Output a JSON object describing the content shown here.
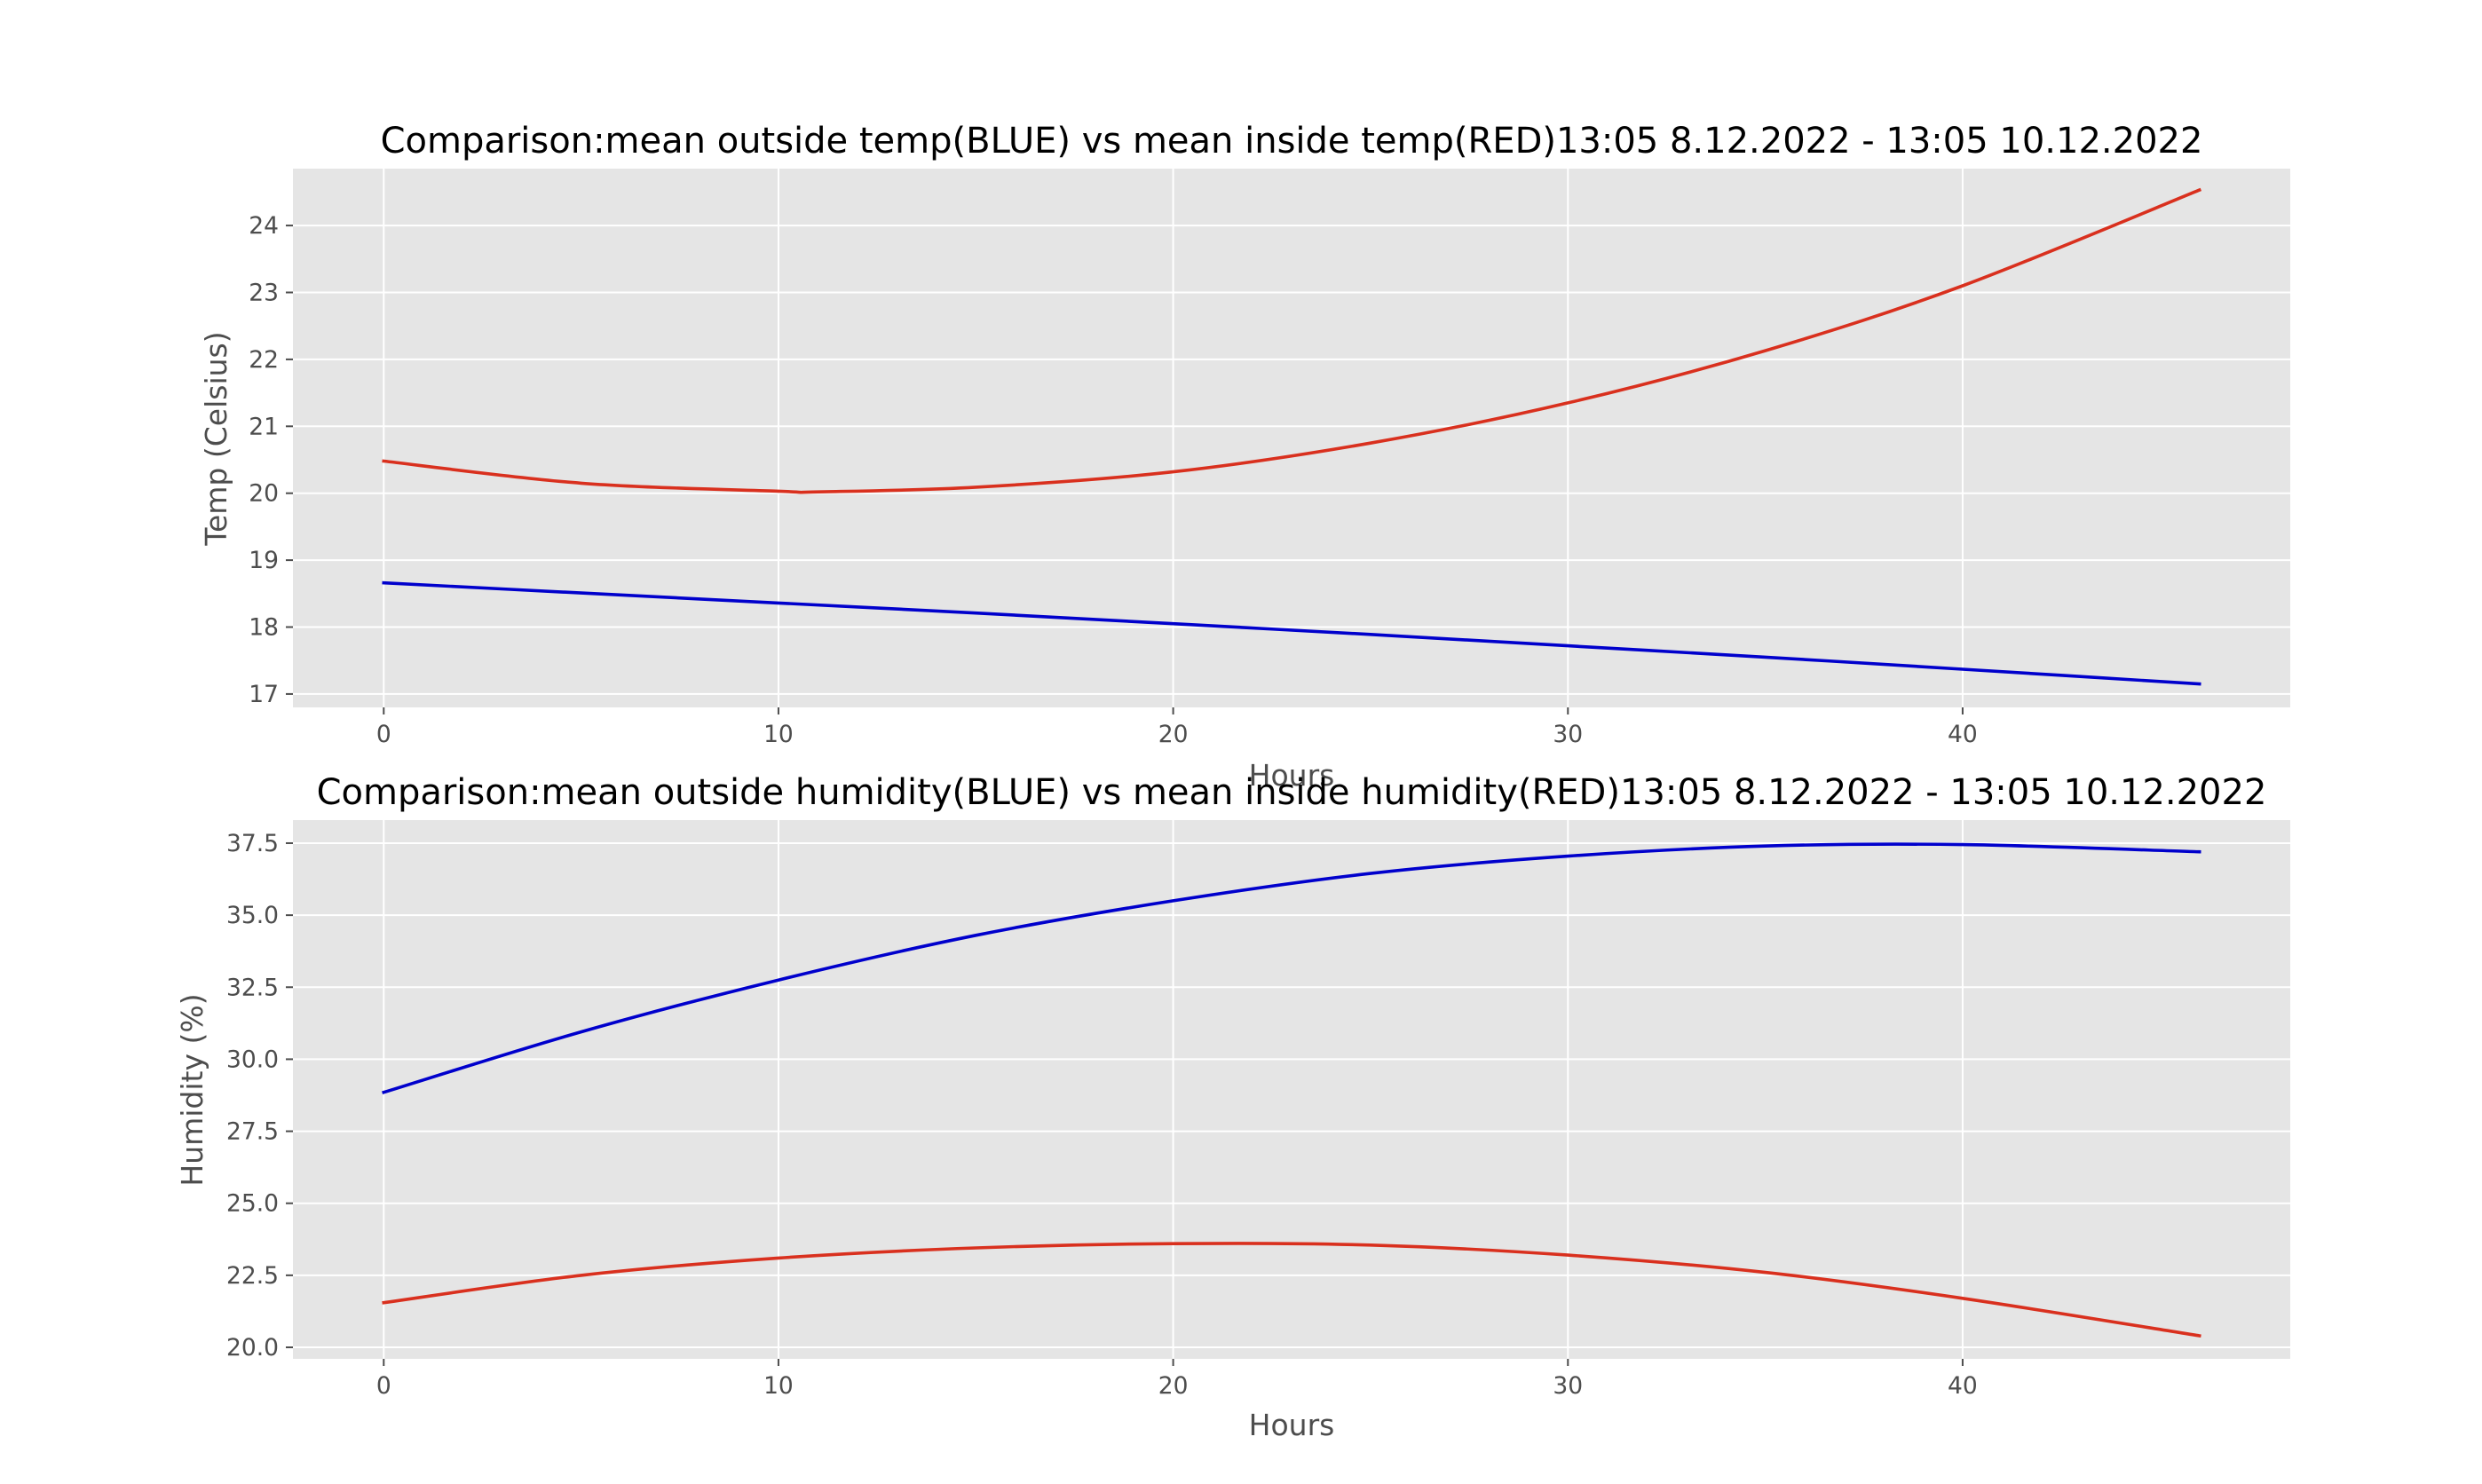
{
  "chart_data": [
    {
      "type": "line",
      "title": "Comparison:mean outside temp(BLUE) vs mean inside temp(RED)13:05 8.12.2022 - 13:05 10.12.2022",
      "xlabel": "Hours",
      "ylabel": "Temp (Celsius)",
      "xlim": [
        -2.3,
        48.3
      ],
      "ylim": [
        16.8,
        24.85
      ],
      "xticks": [
        "0",
        "10",
        "20",
        "30",
        "40"
      ],
      "yticks": [
        "17",
        "18",
        "19",
        "20",
        "21",
        "22",
        "23",
        "24"
      ],
      "grid": true,
      "series": [
        {
          "color": "#0000cc",
          "x": [
            0,
            5,
            10,
            15,
            20,
            25,
            30,
            35,
            40,
            46
          ],
          "y": [
            18.66,
            18.51,
            18.36,
            18.21,
            18.05,
            17.89,
            17.72,
            17.55,
            17.37,
            17.15
          ]
        },
        {
          "color": "#d9301e",
          "x": [
            0,
            5,
            10,
            11,
            15,
            20,
            25,
            30,
            35,
            40,
            46
          ],
          "y": [
            20.48,
            20.15,
            20.03,
            20.02,
            20.09,
            20.32,
            20.75,
            21.35,
            22.13,
            23.1,
            24.53
          ]
        }
      ]
    },
    {
      "type": "line",
      "title": "Comparison:mean outside humidity(BLUE) vs mean inside humidity(RED)13:05 8.12.2022 - 13:05 10.12.2022",
      "xlabel": "Hours",
      "ylabel": "Humidity (%)",
      "xlim": [
        -2.3,
        48.3
      ],
      "ylim": [
        19.6,
        38.3
      ],
      "xticks": [
        "0",
        "10",
        "20",
        "30",
        "40"
      ],
      "yticks": [
        "20.0",
        "22.5",
        "25.0",
        "27.5",
        "30.0",
        "32.5",
        "35.0",
        "37.5"
      ],
      "grid": true,
      "series": [
        {
          "color": "#0000cc",
          "x": [
            0,
            5,
            10,
            15,
            20,
            25,
            30,
            35,
            40,
            46
          ],
          "y": [
            28.85,
            30.95,
            32.75,
            34.3,
            35.5,
            36.45,
            37.05,
            37.4,
            37.45,
            37.2
          ]
        },
        {
          "color": "#d9301e",
          "x": [
            0,
            5,
            10,
            15,
            20,
            25,
            30,
            35,
            40,
            46
          ],
          "y": [
            21.55,
            22.5,
            23.1,
            23.45,
            23.6,
            23.55,
            23.2,
            22.6,
            21.7,
            20.4
          ]
        }
      ]
    }
  ]
}
